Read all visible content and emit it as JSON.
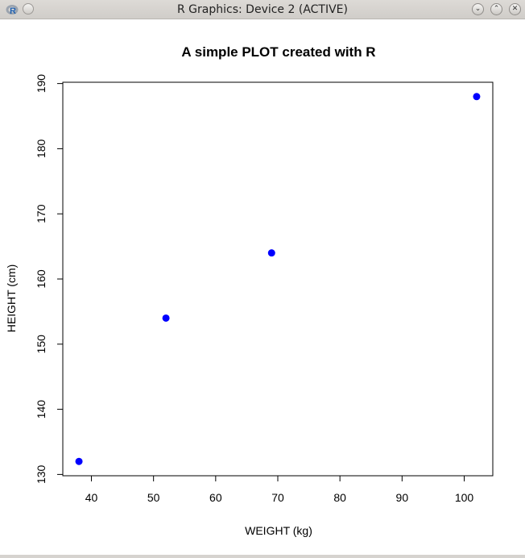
{
  "window": {
    "title": "R Graphics: Device 2 (ACTIVE)",
    "app_icon_letter": "R",
    "buttons": {
      "minimize": "⌄",
      "maximize": "⌃",
      "close": "✕"
    }
  },
  "chart_data": {
    "type": "scatter",
    "title": "A simple PLOT created with R",
    "xlabel": "WEIGHT (kg)",
    "ylabel": "HEIGHT (cm)",
    "x": [
      38,
      52,
      69,
      102
    ],
    "y": [
      132,
      154,
      164,
      188
    ],
    "xlim": [
      35.4,
      104.6
    ],
    "ylim": [
      129.8,
      190.2
    ],
    "xticks": [
      40,
      50,
      60,
      70,
      80,
      90,
      100
    ],
    "yticks": [
      130,
      140,
      150,
      160,
      170,
      180,
      190
    ],
    "point_color": "#0000ff",
    "grid": false
  }
}
